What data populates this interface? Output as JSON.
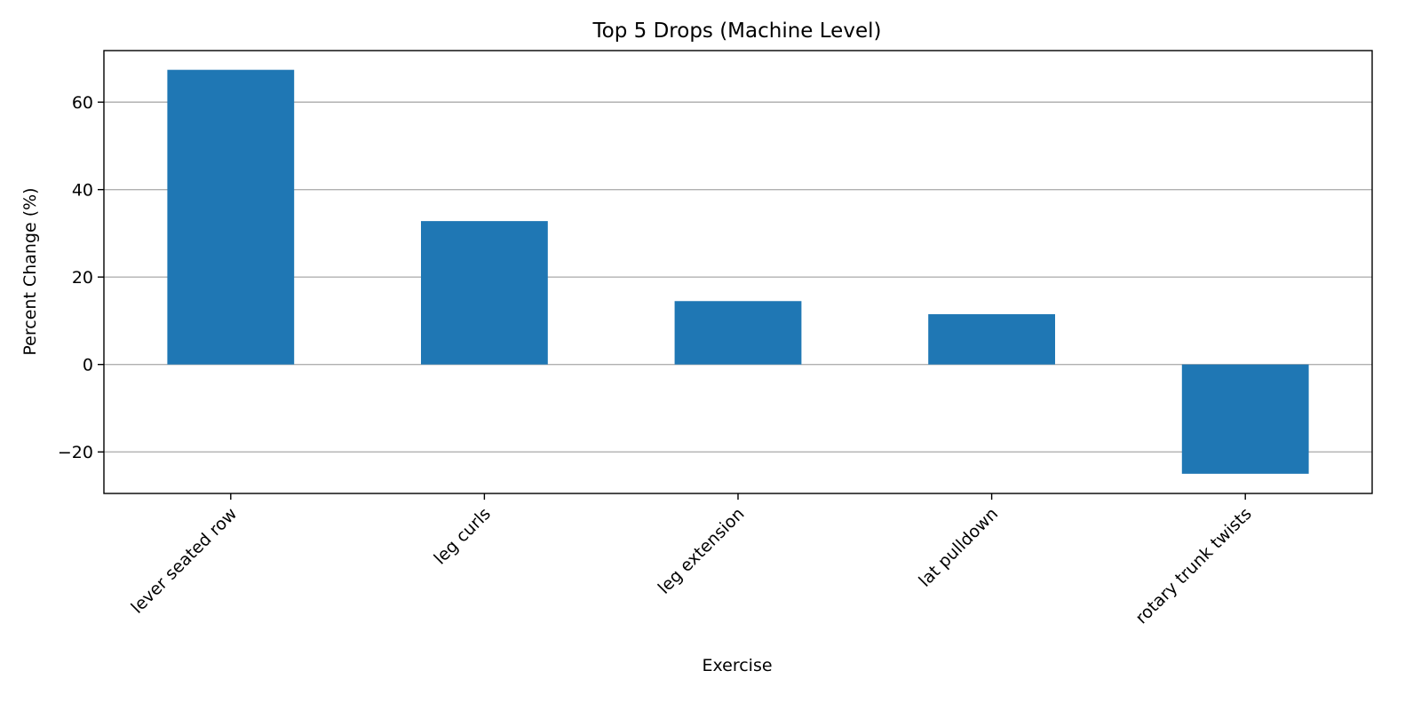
{
  "chart_data": {
    "type": "bar",
    "title": "Top 5 Drops (Machine Level)",
    "xlabel": "Exercise",
    "ylabel": "Percent Change (%)",
    "categories": [
      "lever seated row",
      "leg curls",
      "leg extension",
      "lat pulldown",
      "rotary trunk twists"
    ],
    "values": [
      67.4,
      32.8,
      14.5,
      11.5,
      -25.0
    ],
    "ylim": [
      -29.5,
      71.8
    ],
    "yticks": [
      -20,
      0,
      20,
      40,
      60
    ],
    "ytick_labels": [
      "−20",
      "0",
      "20",
      "40",
      "60"
    ],
    "grid": "horizontal",
    "bar_color": "#1f77b4"
  }
}
